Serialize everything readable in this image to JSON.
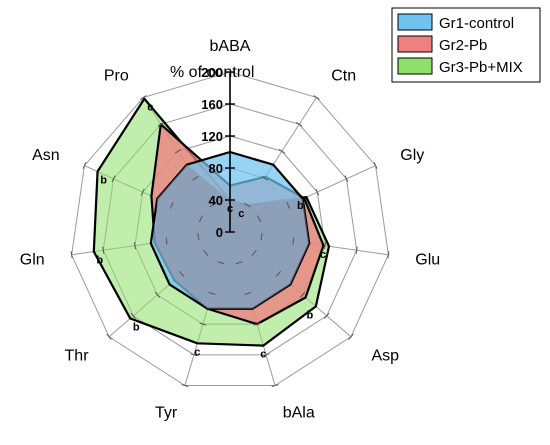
{
  "chart_data": {
    "type": "radar",
    "title": "% of control",
    "axes": [
      "bABA",
      "Ctn",
      "Gly",
      "Glu",
      "Asp",
      "bAla",
      "Tyr",
      "Thr",
      "Gln",
      "Asn",
      "Pro"
    ],
    "ticks": [
      0,
      40,
      80,
      120,
      160,
      200
    ],
    "tick_labels": [
      "0",
      "40",
      "80",
      "120",
      "160",
      "200"
    ],
    "range": [
      0,
      200
    ],
    "grid": "polygon",
    "legend_position": "top-right",
    "series": [
      {
        "name": "Gr1-control",
        "color": "#6fc3f0",
        "values": [
          100,
          100,
          100,
          100,
          100,
          100,
          100,
          100,
          100,
          100,
          100
        ]
      },
      {
        "name": "Gr2-Pb",
        "color": "#f08080",
        "values": [
          58,
          82,
          102,
          118,
          125,
          120,
          100,
          92,
          95,
          108,
          160
        ]
      },
      {
        "name": "Gr3-Pb+MIX",
        "color": "#8ee06a",
        "values": [
          40,
          40,
          105,
          125,
          142,
          148,
          145,
          165,
          172,
          182,
          198
        ]
      }
    ],
    "significance_labels": [
      {
        "axis": "bABA",
        "text": "c",
        "value": 40
      },
      {
        "axis": "Ctn",
        "text": "c",
        "value": 40
      },
      {
        "axis": "Gly",
        "text": "b",
        "value": 105
      },
      {
        "axis": "Glu",
        "text": "c",
        "value": 125
      },
      {
        "axis": "Asp",
        "text": "b",
        "value": 142
      },
      {
        "axis": "bAla",
        "text": "c",
        "value": 148
      },
      {
        "axis": "Tyr",
        "text": "c",
        "value": 145
      },
      {
        "axis": "Thr",
        "text": "b",
        "value": 165
      },
      {
        "axis": "Gln",
        "text": "b",
        "value": 172
      },
      {
        "axis": "Asn",
        "text": "b",
        "value": 182
      },
      {
        "axis": "Pro",
        "text": "c",
        "value": 198
      }
    ]
  }
}
